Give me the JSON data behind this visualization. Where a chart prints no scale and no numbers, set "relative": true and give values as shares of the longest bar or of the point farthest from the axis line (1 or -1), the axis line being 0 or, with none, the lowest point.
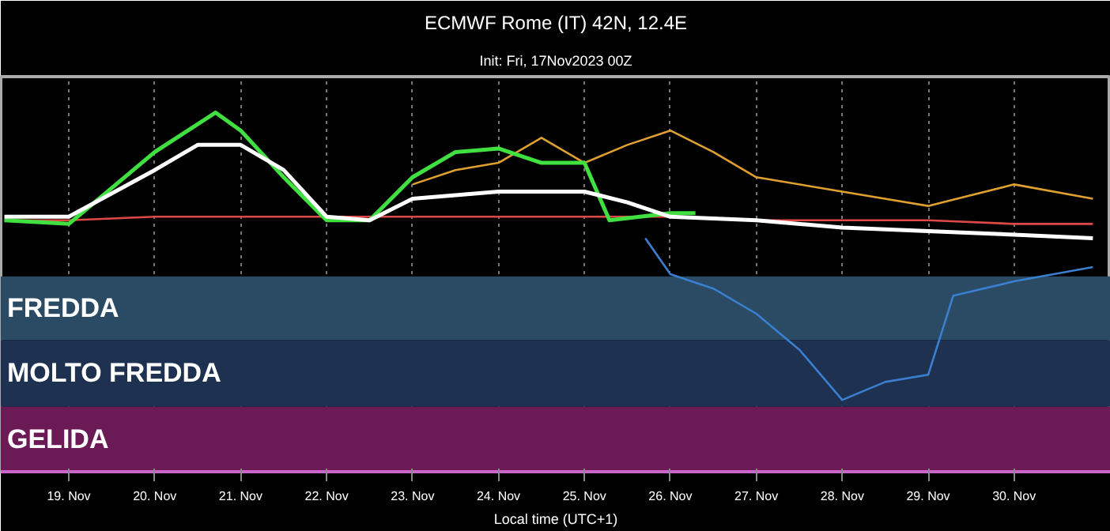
{
  "chart_data": {
    "type": "line",
    "title": "ECMWF Rome (IT) 42N, 12.4E",
    "subtitle": "Init: Fri, 17Nov2023 00Z",
    "xlabel": "Local time (UTC+1)",
    "relative": true,
    "grid": "x",
    "xlim": [
      "2023-11-18T05:00",
      "2023-12-01T03:00"
    ],
    "xticks": [
      {
        "value": "2023-11-19",
        "label": "19. Nov"
      },
      {
        "value": "2023-11-20",
        "label": "20. Nov"
      },
      {
        "value": "2023-11-21",
        "label": "21. Nov"
      },
      {
        "value": "2023-11-22",
        "label": "22. Nov"
      },
      {
        "value": "2023-11-23",
        "label": "23. Nov"
      },
      {
        "value": "2023-11-24",
        "label": "24. Nov"
      },
      {
        "value": "2023-11-25",
        "label": "25. Nov"
      },
      {
        "value": "2023-11-26",
        "label": "26. Nov"
      },
      {
        "value": "2023-11-27",
        "label": "27. Nov"
      },
      {
        "value": "2023-11-28",
        "label": "28. Nov"
      },
      {
        "value": "2023-11-29",
        "label": "29. Nov"
      },
      {
        "value": "2023-11-30",
        "label": "30. Nov"
      }
    ],
    "bands": [
      {
        "axis": "y",
        "from": 0.367,
        "to": 0.544,
        "label": "FREDDA",
        "color": "#2b4a63"
      },
      {
        "axis": "y",
        "from": 0.181,
        "to": 0.367,
        "label": "MOLTO FREDDA",
        "color": "#1e3150"
      },
      {
        "axis": "y",
        "from": 0,
        "to": 0.181,
        "label": "GELIDA",
        "color": "#6b1a55"
      }
    ],
    "series": [
      {
        "color": "#e0a030",
        "x": [
          "2023-11-23",
          "2023-11-23T12:00",
          "2023-11-24",
          "2023-11-24T12:00",
          "2023-11-25",
          "2023-11-25T12:00",
          "2023-11-26",
          "2023-11-26T12:00",
          "2023-11-27",
          "2023-11-28",
          "2023-11-29",
          "2023-11-30",
          "2023-11-30T22:00"
        ],
        "values": [
          0.8,
          0.84,
          0.86,
          0.93,
          0.86,
          0.91,
          0.95,
          0.89,
          0.82,
          0.78,
          0.74,
          0.8,
          0.76
        ]
      },
      {
        "color": "#3a7fd0",
        "x": [
          "2023-11-25T17:00",
          "2023-11-26",
          "2023-11-26T12:00",
          "2023-11-27",
          "2023-11-27T12:00",
          "2023-11-28",
          "2023-11-28T12:00",
          "2023-11-29",
          "2023-11-29T07:00",
          "2023-11-30",
          "2023-11-30T22:00"
        ],
        "values": [
          0.65,
          0.55,
          0.51,
          0.44,
          0.34,
          0.2,
          0.25,
          0.27,
          0.49,
          0.53,
          0.57
        ]
      },
      {
        "color": "#e04848",
        "x": [
          "2023-11-18T06:00",
          "2023-11-19",
          "2023-11-20",
          "2023-11-21",
          "2023-11-22",
          "2023-11-23",
          "2023-11-24",
          "2023-11-25",
          "2023-11-26",
          "2023-11-27",
          "2023-11-28",
          "2023-11-29",
          "2023-11-30",
          "2023-11-30T22:00"
        ],
        "values": [
          0.7,
          0.7,
          0.71,
          0.71,
          0.71,
          0.71,
          0.71,
          0.71,
          0.71,
          0.7,
          0.7,
          0.7,
          0.69,
          0.69
        ]
      },
      {
        "color": "#40e040",
        "x": [
          "2023-11-18T06:00",
          "2023-11-19",
          "2023-11-19T12:00",
          "2023-11-20",
          "2023-11-20T17:00",
          "2023-11-21",
          "2023-11-21T12:00",
          "2023-11-22",
          "2023-11-22T12:00",
          "2023-11-23",
          "2023-11-23T12:00",
          "2023-11-24",
          "2023-11-24T12:00",
          "2023-11-25",
          "2023-11-25T07:00",
          "2023-11-26",
          "2023-11-26T07:00"
        ],
        "values": [
          0.7,
          0.69,
          0.79,
          0.89,
          1.0,
          0.95,
          0.82,
          0.7,
          0.7,
          0.82,
          0.89,
          0.9,
          0.86,
          0.86,
          0.7,
          0.72,
          0.72
        ]
      },
      {
        "color": "#ffffff",
        "x": [
          "2023-11-18T06:00",
          "2023-11-19",
          "2023-11-20",
          "2023-11-20T12:00",
          "2023-11-21",
          "2023-11-21T12:00",
          "2023-11-22",
          "2023-11-22T12:00",
          "2023-11-23",
          "2023-11-23T12:00",
          "2023-11-24",
          "2023-11-25",
          "2023-11-25T12:00",
          "2023-11-26",
          "2023-11-27",
          "2023-11-28",
          "2023-11-29",
          "2023-11-30",
          "2023-11-30T22:00"
        ],
        "values": [
          0.71,
          0.71,
          0.84,
          0.91,
          0.91,
          0.84,
          0.71,
          0.7,
          0.76,
          0.77,
          0.78,
          0.78,
          0.75,
          0.71,
          0.7,
          0.68,
          0.67,
          0.66,
          0.65
        ]
      }
    ]
  }
}
